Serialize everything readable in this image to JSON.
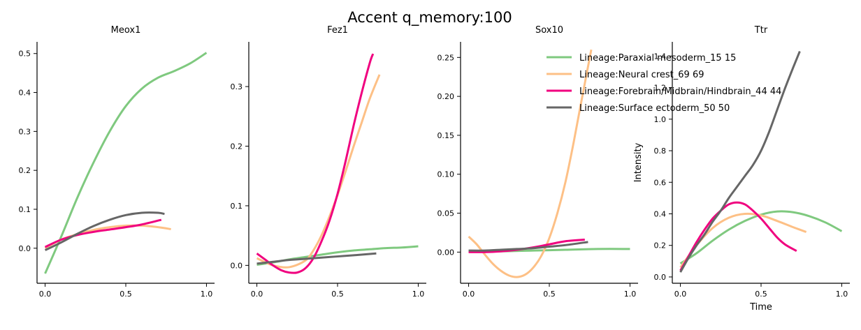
{
  "figure": {
    "title": "Accent q_memory:100"
  },
  "colors": {
    "paraxial": "#7fc97f",
    "neural": "#fdc086",
    "forebrain": "#f0027f",
    "surface": "#666666"
  },
  "legend": [
    {
      "label": "Lineage:Paraxial mesoderm_15 15",
      "color": "#7fc97f"
    },
    {
      "label": "Lineage:Neural crest_69 69",
      "color": "#fdc086"
    },
    {
      "label": "Lineage:Forebrain/Midbrain/Hindbrain_44 44",
      "color": "#f0027f"
    },
    {
      "label": "Lineage:Surface ectoderm_50 50",
      "color": "#666666"
    }
  ],
  "chart_data": [
    {
      "type": "line",
      "title": "Meox1",
      "xlabel": "",
      "ylabel": "",
      "xlim": [
        -0.05,
        1.05
      ],
      "ylim": [
        -0.09,
        0.53
      ],
      "xticks": [
        0.0,
        0.5,
        1.0
      ],
      "xtick_labels": [
        "0.0",
        "0.5",
        "1.0"
      ],
      "yticks": [
        0.0,
        0.1,
        0.2,
        0.3,
        0.4,
        0.5
      ],
      "ytick_labels": [
        "0.0",
        "0.1",
        "0.2",
        "0.3",
        "0.4",
        "0.5"
      ],
      "series": [
        {
          "key": "paraxial",
          "color": "#7fc97f",
          "x": [
            0.0,
            0.1,
            0.2,
            0.3,
            0.4,
            0.5,
            0.6,
            0.7,
            0.8,
            0.9,
            1.0
          ],
          "y": [
            -0.065,
            0.03,
            0.13,
            0.22,
            0.3,
            0.365,
            0.41,
            0.438,
            0.455,
            0.475,
            0.502
          ]
        },
        {
          "key": "neural",
          "color": "#fdc086",
          "x": [
            0.0,
            0.1,
            0.2,
            0.3,
            0.4,
            0.5,
            0.6,
            0.7,
            0.78
          ],
          "y": [
            0.0,
            0.022,
            0.036,
            0.047,
            0.054,
            0.058,
            0.058,
            0.054,
            0.049
          ]
        },
        {
          "key": "forebrain",
          "color": "#f0027f",
          "x": [
            0.0,
            0.1,
            0.2,
            0.3,
            0.4,
            0.5,
            0.6,
            0.72
          ],
          "y": [
            0.003,
            0.022,
            0.034,
            0.042,
            0.048,
            0.054,
            0.061,
            0.073
          ]
        },
        {
          "key": "surface",
          "color": "#666666",
          "x": [
            0.0,
            0.1,
            0.2,
            0.3,
            0.4,
            0.5,
            0.6,
            0.7,
            0.74
          ],
          "y": [
            -0.005,
            0.015,
            0.037,
            0.057,
            0.073,
            0.085,
            0.091,
            0.091,
            0.088
          ]
        }
      ]
    },
    {
      "type": "line",
      "title": "Fez1",
      "xlabel": "",
      "ylabel": "",
      "xlim": [
        -0.05,
        1.05
      ],
      "ylim": [
        -0.03,
        0.375
      ],
      "xticks": [
        0.0,
        0.5,
        1.0
      ],
      "xtick_labels": [
        "0.0",
        "0.5",
        "1.0"
      ],
      "yticks": [
        0.0,
        0.1,
        0.2,
        0.3
      ],
      "ytick_labels": [
        "0.0",
        "0.1",
        "0.2",
        "0.3"
      ],
      "series": [
        {
          "key": "paraxial",
          "color": "#7fc97f",
          "x": [
            0.0,
            0.1,
            0.2,
            0.3,
            0.4,
            0.5,
            0.6,
            0.7,
            0.8,
            0.9,
            1.0
          ],
          "y": [
            0.001,
            0.005,
            0.01,
            0.014,
            0.018,
            0.022,
            0.025,
            0.027,
            0.029,
            0.03,
            0.032
          ]
        },
        {
          "key": "neural",
          "color": "#fdc086",
          "x": [
            0.0,
            0.1,
            0.2,
            0.3,
            0.35,
            0.4,
            0.45,
            0.5,
            0.55,
            0.6,
            0.65,
            0.7,
            0.76
          ],
          "y": [
            0.012,
            0.0,
            -0.003,
            0.008,
            0.025,
            0.05,
            0.082,
            0.118,
            0.158,
            0.2,
            0.24,
            0.28,
            0.32
          ]
        },
        {
          "key": "forebrain",
          "color": "#f0027f",
          "x": [
            0.0,
            0.05,
            0.1,
            0.15,
            0.2,
            0.25,
            0.3,
            0.35,
            0.4,
            0.45,
            0.5,
            0.55,
            0.6,
            0.65,
            0.7,
            0.72
          ],
          "y": [
            0.02,
            0.01,
            0.0,
            -0.008,
            -0.012,
            -0.012,
            -0.005,
            0.012,
            0.04,
            0.075,
            0.12,
            0.175,
            0.235,
            0.29,
            0.34,
            0.355
          ]
        },
        {
          "key": "surface",
          "color": "#666666",
          "x": [
            0.0,
            0.1,
            0.2,
            0.3,
            0.4,
            0.5,
            0.6,
            0.74
          ],
          "y": [
            0.003,
            0.006,
            0.009,
            0.011,
            0.013,
            0.015,
            0.017,
            0.02
          ]
        }
      ]
    },
    {
      "type": "line",
      "title": "Sox10",
      "xlabel": "",
      "ylabel": "",
      "xlim": [
        -0.05,
        1.05
      ],
      "ylim": [
        -0.04,
        0.27
      ],
      "xticks": [
        0.0,
        0.5,
        1.0
      ],
      "xtick_labels": [
        "0.0",
        "0.5",
        "1.0"
      ],
      "yticks": [
        0.0,
        0.05,
        0.1,
        0.15,
        0.2,
        0.25
      ],
      "ytick_labels": [
        "0.00",
        "0.05",
        "0.10",
        "0.15",
        "0.20",
        "0.25"
      ],
      "series": [
        {
          "key": "paraxial",
          "color": "#7fc97f",
          "x": [
            0.0,
            0.2,
            0.4,
            0.6,
            0.8,
            1.0
          ],
          "y": [
            0.001,
            0.001,
            0.002,
            0.003,
            0.004,
            0.004
          ]
        },
        {
          "key": "neural",
          "color": "#fdc086",
          "x": [
            0.0,
            0.05,
            0.1,
            0.15,
            0.2,
            0.25,
            0.3,
            0.35,
            0.4,
            0.45,
            0.5,
            0.55,
            0.6,
            0.65,
            0.7,
            0.76
          ],
          "y": [
            0.02,
            0.01,
            -0.003,
            -0.015,
            -0.024,
            -0.03,
            -0.032,
            -0.029,
            -0.02,
            -0.005,
            0.018,
            0.05,
            0.09,
            0.14,
            0.195,
            0.26
          ]
        },
        {
          "key": "forebrain",
          "color": "#f0027f",
          "x": [
            0.0,
            0.1,
            0.2,
            0.3,
            0.4,
            0.5,
            0.6,
            0.72
          ],
          "y": [
            0.0,
            0.0,
            0.001,
            0.003,
            0.006,
            0.01,
            0.014,
            0.016
          ]
        },
        {
          "key": "surface",
          "color": "#666666",
          "x": [
            0.0,
            0.1,
            0.2,
            0.3,
            0.4,
            0.5,
            0.6,
            0.74
          ],
          "y": [
            0.002,
            0.002,
            0.003,
            0.004,
            0.005,
            0.007,
            0.009,
            0.013
          ]
        }
      ]
    },
    {
      "type": "line",
      "title": "Ttr",
      "xlabel": "Time",
      "ylabel": "Intensity",
      "xlim": [
        -0.05,
        1.05
      ],
      "ylim": [
        -0.04,
        1.49
      ],
      "xticks": [
        0.0,
        0.5,
        1.0
      ],
      "xtick_labels": [
        "0.0",
        "0.5",
        "1.0"
      ],
      "yticks": [
        0.0,
        0.2,
        0.4,
        0.6,
        0.8,
        1.0,
        1.2,
        1.4
      ],
      "ytick_labels": [
        "0.0",
        "0.2",
        "0.4",
        "0.6",
        "0.8",
        "1.0",
        "1.2",
        "1.4"
      ],
      "series": [
        {
          "key": "paraxial",
          "color": "#7fc97f",
          "x": [
            0.0,
            0.1,
            0.2,
            0.3,
            0.4,
            0.5,
            0.6,
            0.7,
            0.8,
            0.9,
            1.0
          ],
          "y": [
            0.085,
            0.15,
            0.23,
            0.3,
            0.355,
            0.395,
            0.415,
            0.41,
            0.385,
            0.345,
            0.29
          ]
        },
        {
          "key": "neural",
          "color": "#fdc086",
          "x": [
            0.0,
            0.1,
            0.2,
            0.3,
            0.4,
            0.5,
            0.6,
            0.7,
            0.78
          ],
          "y": [
            0.06,
            0.2,
            0.31,
            0.375,
            0.4,
            0.39,
            0.355,
            0.315,
            0.285
          ]
        },
        {
          "key": "forebrain",
          "color": "#f0027f",
          "x": [
            0.0,
            0.05,
            0.1,
            0.15,
            0.2,
            0.25,
            0.3,
            0.35,
            0.4,
            0.45,
            0.5,
            0.55,
            0.6,
            0.65,
            0.72
          ],
          "y": [
            0.04,
            0.13,
            0.22,
            0.3,
            0.37,
            0.42,
            0.46,
            0.472,
            0.46,
            0.42,
            0.37,
            0.31,
            0.25,
            0.205,
            0.165
          ]
        },
        {
          "key": "surface",
          "color": "#666666",
          "x": [
            0.0,
            0.05,
            0.1,
            0.15,
            0.2,
            0.25,
            0.3,
            0.35,
            0.4,
            0.45,
            0.5,
            0.55,
            0.6,
            0.65,
            0.7,
            0.74
          ],
          "y": [
            0.03,
            0.12,
            0.2,
            0.27,
            0.35,
            0.42,
            0.5,
            0.57,
            0.64,
            0.71,
            0.8,
            0.92,
            1.06,
            1.2,
            1.33,
            1.43
          ]
        }
      ]
    }
  ]
}
